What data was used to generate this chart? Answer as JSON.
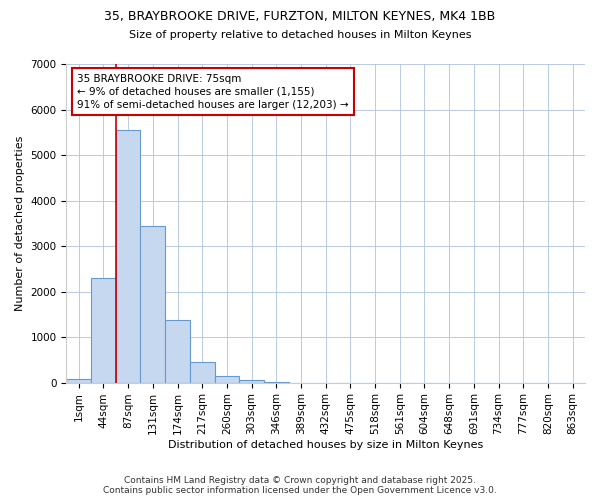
{
  "title_line1": "35, BRAYBROOKE DRIVE, FURZTON, MILTON KEYNES, MK4 1BB",
  "title_line2": "Size of property relative to detached houses in Milton Keynes",
  "xlabel": "Distribution of detached houses by size in Milton Keynes",
  "ylabel": "Number of detached properties",
  "categories": [
    "1sqm",
    "44sqm",
    "87sqm",
    "131sqm",
    "174sqm",
    "217sqm",
    "260sqm",
    "303sqm",
    "346sqm",
    "389sqm",
    "432sqm",
    "475sqm",
    "518sqm",
    "561sqm",
    "604sqm",
    "648sqm",
    "691sqm",
    "734sqm",
    "777sqm",
    "820sqm",
    "863sqm"
  ],
  "values": [
    70,
    2300,
    5560,
    3440,
    1380,
    460,
    150,
    60,
    5,
    0,
    0,
    0,
    0,
    0,
    0,
    0,
    0,
    0,
    0,
    0,
    0
  ],
  "bar_color": "#c5d8f0",
  "bar_edge_color": "#6699cc",
  "vline_color": "#cc0000",
  "vline_x_index": 2,
  "annotation_text": "35 BRAYBROOKE DRIVE: 75sqm\n← 9% of detached houses are smaller (1,155)\n91% of semi-detached houses are larger (12,203) →",
  "annotation_box_color": "#ffffff",
  "annotation_border_color": "#cc0000",
  "footer_line1": "Contains HM Land Registry data © Crown copyright and database right 2025.",
  "footer_line2": "Contains public sector information licensed under the Open Government Licence v3.0.",
  "ylim": [
    0,
    7000
  ],
  "yticks": [
    0,
    1000,
    2000,
    3000,
    4000,
    5000,
    6000,
    7000
  ],
  "bg_color": "#ffffff",
  "grid_color": "#b0c4de",
  "title_fontsize": 9,
  "subtitle_fontsize": 8,
  "axis_label_fontsize": 8,
  "tick_fontsize": 7.5,
  "annotation_fontsize": 7.5,
  "footer_fontsize": 6.5
}
